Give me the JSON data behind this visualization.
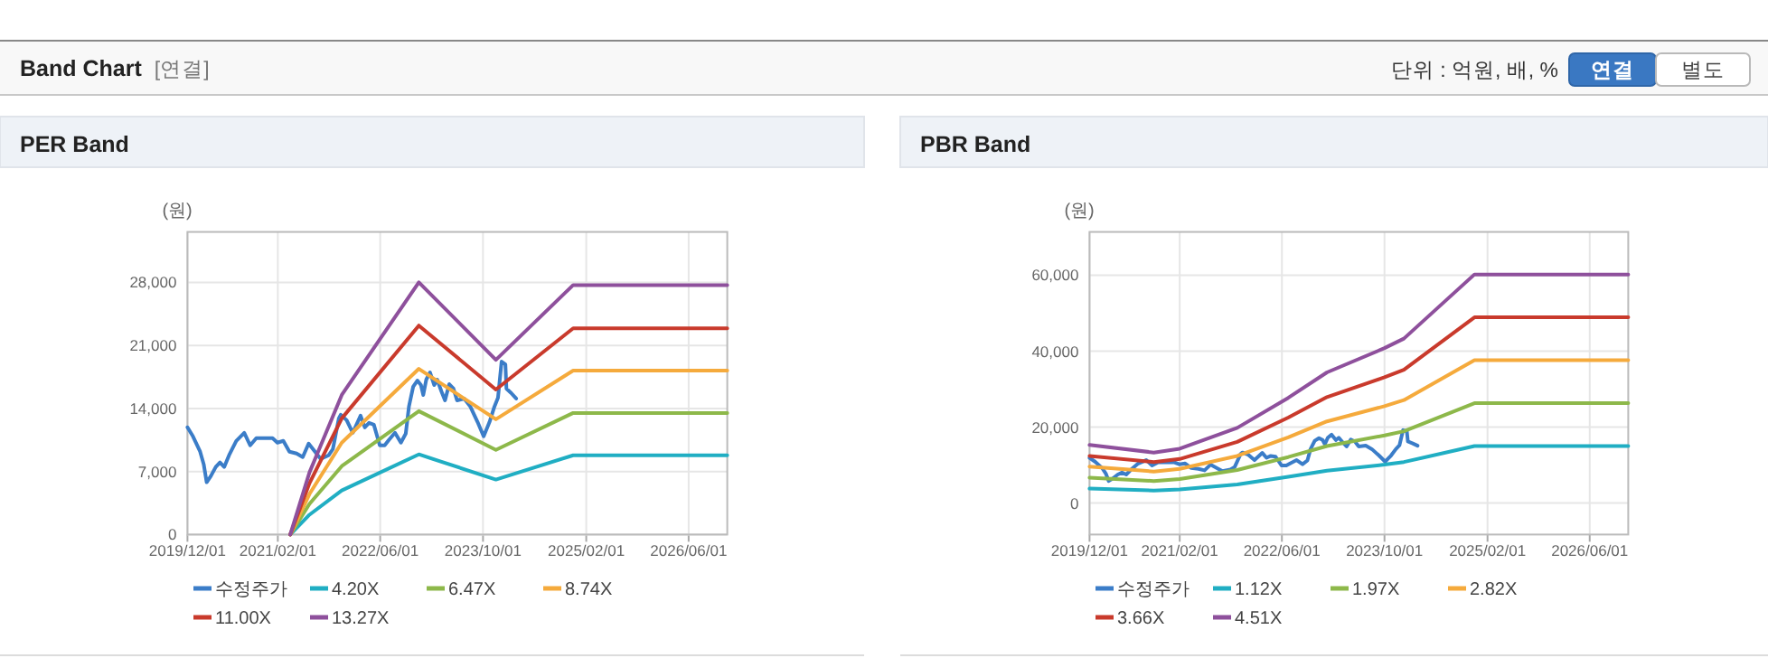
{
  "chart_data": [
    {
      "type": "other",
      "title": "Band Chart",
      "annotations": [
        "[연결]",
        "단위 : 억원, 배, %",
        "연결",
        "별도"
      ]
    },
    {
      "type": "line",
      "title": "PER Band",
      "ylabel": "(원)",
      "xlim": [
        "2019-12-01",
        "2026-12-01"
      ],
      "ylim": [
        0,
        33600
      ],
      "xticks": [
        {
          "value": "2019-12-01",
          "label": "2019/12/01"
        },
        {
          "value": "2021-02-01",
          "label": "2021/02/01"
        },
        {
          "value": "2022-06-01",
          "label": "2022/06/01"
        },
        {
          "value": "2023-10-01",
          "label": "2023/10/01"
        },
        {
          "value": "2025-02-01",
          "label": "2025/02/01"
        },
        {
          "value": "2026-06-01",
          "label": "2026/06/01"
        }
      ],
      "yticks": [
        0,
        {
          "value": 7000,
          "label": "7,000"
        },
        {
          "value": 14000,
          "label": "14,000"
        },
        {
          "value": 21000,
          "label": "21,000"
        },
        {
          "value": 28000,
          "label": "28,000"
        }
      ],
      "grid": true,
      "legend": "bottom",
      "line_style": "solid",
      "series": [
        {
          "name": "수정주가",
          "color": "#3b7dc8",
          "x": [
            "2019-12-01",
            "2019-12-27",
            "2020-01-30",
            "2020-02-16",
            "2020-03-01",
            "2020-03-21",
            "2020-04-13",
            "2020-05-03",
            "2020-05-23",
            "2020-06-15",
            "2020-07-19",
            "2020-08-26",
            "2020-09-23",
            "2020-10-22",
            "2020-12-04",
            "2021-01-07",
            "2021-01-30",
            "2021-02-27",
            "2021-03-28",
            "2021-05-01",
            "2021-05-30",
            "2021-06-27",
            "2021-08-03",
            "2021-08-23",
            "2021-09-30",
            "2021-10-20",
            "2021-11-17",
            "2021-11-26",
            "2021-12-24",
            "2022-01-22",
            "2022-02-28",
            "2022-03-20",
            "2022-04-09",
            "2022-05-02",
            "2022-05-30",
            "2022-06-22",
            "2022-07-12",
            "2022-08-10",
            "2022-09-07",
            "2022-09-30",
            "2022-10-15",
            "2022-11-04",
            "2022-11-24",
            "2022-12-11",
            "2022-12-22",
            "2023-01-05",
            "2023-01-23",
            "2023-02-12",
            "2023-02-26",
            "2023-03-18",
            "2023-04-04",
            "2023-04-24",
            "2023-05-14",
            "2023-05-31",
            "2023-07-04",
            "2023-08-02",
            "2023-09-05",
            "2023-10-04",
            "2023-11-01",
            "2023-11-24",
            "2023-12-11",
            "2023-12-28",
            "2024-01-15",
            "2024-01-20",
            "2024-02-12",
            "2024-03-06"
          ],
          "values": [
            11900,
            10900,
            9200,
            7800,
            5800,
            6500,
            7500,
            8000,
            7500,
            8800,
            10400,
            11300,
            9900,
            10700,
            10700,
            10700,
            10200,
            10400,
            9200,
            9000,
            8600,
            10100,
            9000,
            8400,
            8800,
            9500,
            12900,
            13300,
            12700,
            11300,
            13200,
            11900,
            12400,
            12200,
            9900,
            9900,
            10500,
            11300,
            10200,
            11200,
            14200,
            16400,
            17100,
            16600,
            15500,
            17200,
            18000,
            16600,
            17200,
            15900,
            14900,
            16700,
            16200,
            14900,
            15100,
            14200,
            12500,
            10900,
            12500,
            14200,
            15200,
            19200,
            18900,
            16200,
            15700,
            15100
          ]
        },
        {
          "name": "4.20X",
          "color": "#20aec3",
          "x": [
            "2021-04-01",
            "2021-07-01",
            "2021-12-01",
            "2022-12-01",
            "2023-12-01",
            "2024-12-01",
            "2026-12-01"
          ],
          "values": [
            0,
            2200,
            4900,
            8900,
            6100,
            8800,
            8800
          ]
        },
        {
          "name": "6.47X",
          "color": "#8db84a",
          "x": [
            "2021-04-01",
            "2021-07-01",
            "2021-12-01",
            "2022-12-01",
            "2023-12-01",
            "2024-12-01",
            "2026-12-01"
          ],
          "values": [
            0,
            3400,
            7600,
            13700,
            9400,
            13500,
            13500
          ]
        },
        {
          "name": "8.74X",
          "color": "#f5aa3c",
          "x": [
            "2021-04-01",
            "2021-07-01",
            "2021-12-01",
            "2022-12-01",
            "2023-12-01",
            "2024-12-01",
            "2026-12-01"
          ],
          "values": [
            0,
            4500,
            10200,
            18400,
            12800,
            18200,
            18200
          ]
        },
        {
          "name": "11.00X",
          "color": "#c93a2c",
          "x": [
            "2021-04-01",
            "2021-07-01",
            "2021-12-01",
            "2022-12-01",
            "2023-12-01",
            "2024-12-01",
            "2026-12-01"
          ],
          "values": [
            0,
            5700,
            12900,
            23200,
            16100,
            22900,
            22900
          ]
        },
        {
          "name": "13.27X",
          "color": "#8e509c",
          "x": [
            "2021-04-01",
            "2021-07-01",
            "2021-12-01",
            "2022-12-01",
            "2023-12-01",
            "2024-12-01",
            "2026-12-01"
          ],
          "values": [
            0,
            6900,
            15500,
            28000,
            19400,
            27700,
            27700
          ]
        }
      ]
    },
    {
      "type": "line",
      "title": "PBR Band",
      "ylabel": "(원)",
      "xlim": [
        "2019-12-01",
        "2026-12-01"
      ],
      "ylim": [
        -8300,
        71400
      ],
      "xticks": [
        {
          "value": "2019-12-01",
          "label": "2019/12/01"
        },
        {
          "value": "2021-02-01",
          "label": "2021/02/01"
        },
        {
          "value": "2022-06-01",
          "label": "2022/06/01"
        },
        {
          "value": "2023-10-01",
          "label": "2023/10/01"
        },
        {
          "value": "2025-02-01",
          "label": "2025/02/01"
        },
        {
          "value": "2026-06-01",
          "label": "2026/06/01"
        }
      ],
      "yticks": [
        0,
        {
          "value": 20000,
          "label": "20,000"
        },
        {
          "value": 40000,
          "label": "40,000"
        },
        {
          "value": 60000,
          "label": "60,000"
        }
      ],
      "grid": true,
      "legend": "bottom",
      "line_style": "solid",
      "series": [
        {
          "name": "수정주가",
          "color": "#3b7dc8",
          "x": [
            "2019-12-01",
            "2019-12-27",
            "2020-01-30",
            "2020-02-16",
            "2020-03-01",
            "2020-03-21",
            "2020-04-13",
            "2020-05-03",
            "2020-05-23",
            "2020-06-15",
            "2020-07-19",
            "2020-08-26",
            "2020-09-23",
            "2020-10-22",
            "2020-12-04",
            "2021-01-07",
            "2021-01-30",
            "2021-02-27",
            "2021-03-28",
            "2021-05-01",
            "2021-05-30",
            "2021-06-27",
            "2021-08-03",
            "2021-08-23",
            "2021-09-30",
            "2021-10-20",
            "2021-11-17",
            "2021-11-26",
            "2021-12-24",
            "2022-01-22",
            "2022-02-28",
            "2022-03-20",
            "2022-04-09",
            "2022-05-02",
            "2022-05-30",
            "2022-06-22",
            "2022-07-12",
            "2022-08-10",
            "2022-09-07",
            "2022-09-30",
            "2022-10-15",
            "2022-11-04",
            "2022-11-24",
            "2022-12-11",
            "2022-12-22",
            "2023-01-05",
            "2023-01-23",
            "2023-02-12",
            "2023-02-26",
            "2023-03-18",
            "2023-04-04",
            "2023-04-24",
            "2023-05-14",
            "2023-05-31",
            "2023-07-04",
            "2023-08-02",
            "2023-09-05",
            "2023-10-04",
            "2023-11-01",
            "2023-11-24",
            "2023-12-11",
            "2023-12-28",
            "2024-01-15",
            "2024-01-20",
            "2024-02-12",
            "2024-03-06"
          ],
          "values": [
            11900,
            10900,
            9200,
            7800,
            5800,
            6500,
            7500,
            8000,
            7500,
            8800,
            10400,
            11300,
            9900,
            10700,
            10700,
            10700,
            10200,
            10400,
            9200,
            9000,
            8600,
            10100,
            9000,
            8400,
            8800,
            9500,
            12900,
            13300,
            12700,
            11300,
            13200,
            11900,
            12400,
            12200,
            9900,
            9900,
            10500,
            11300,
            10200,
            11200,
            14200,
            16400,
            17100,
            16600,
            15500,
            17200,
            18000,
            16600,
            17200,
            15900,
            14900,
            16700,
            16200,
            14900,
            15100,
            14200,
            12500,
            10900,
            12500,
            14200,
            15200,
            19200,
            18900,
            16200,
            15700,
            15100
          ]
        },
        {
          "name": "1.12X",
          "color": "#20aec3",
          "x": [
            "2019-12-01",
            "2020-10-01",
            "2021-02-01",
            "2021-11-01",
            "2022-07-01",
            "2023-01-01",
            "2023-10-01",
            "2024-01-01",
            "2024-12-01",
            "2026-12-01"
          ],
          "values": [
            3800,
            3300,
            3600,
            4900,
            6900,
            8500,
            10100,
            10800,
            15000,
            15000
          ]
        },
        {
          "name": "1.97X",
          "color": "#8db84a",
          "x": [
            "2019-12-01",
            "2020-10-01",
            "2021-02-01",
            "2021-11-01",
            "2022-07-01",
            "2023-01-01",
            "2023-10-01",
            "2024-01-01",
            "2024-12-01",
            "2026-12-01"
          ],
          "values": [
            6700,
            5800,
            6300,
            8700,
            12100,
            15000,
            17800,
            18900,
            26300,
            26300
          ]
        },
        {
          "name": "2.82X",
          "color": "#f5aa3c",
          "x": [
            "2019-12-01",
            "2020-10-01",
            "2021-02-01",
            "2021-11-01",
            "2022-07-01",
            "2023-01-01",
            "2023-10-01",
            "2024-01-01",
            "2024-12-01",
            "2026-12-01"
          ],
          "values": [
            9600,
            8300,
            9000,
            12400,
            17300,
            21500,
            25500,
            27100,
            37600,
            37600
          ]
        },
        {
          "name": "3.66X",
          "color": "#c93a2c",
          "x": [
            "2019-12-01",
            "2020-10-01",
            "2021-02-01",
            "2021-11-01",
            "2022-07-01",
            "2023-01-01",
            "2023-10-01",
            "2024-01-01",
            "2024-12-01",
            "2026-12-01"
          ],
          "values": [
            12400,
            10800,
            11600,
            16100,
            22500,
            27900,
            33100,
            35100,
            48900,
            48900
          ]
        },
        {
          "name": "4.51X",
          "color": "#8e509c",
          "x": [
            "2019-12-01",
            "2020-10-01",
            "2021-02-01",
            "2021-11-01",
            "2022-07-01",
            "2023-01-01",
            "2023-10-01",
            "2024-01-01",
            "2024-12-01",
            "2026-12-01"
          ],
          "values": [
            15300,
            13300,
            14300,
            19800,
            27700,
            34400,
            40800,
            43300,
            60200,
            60200
          ]
        }
      ]
    }
  ]
}
